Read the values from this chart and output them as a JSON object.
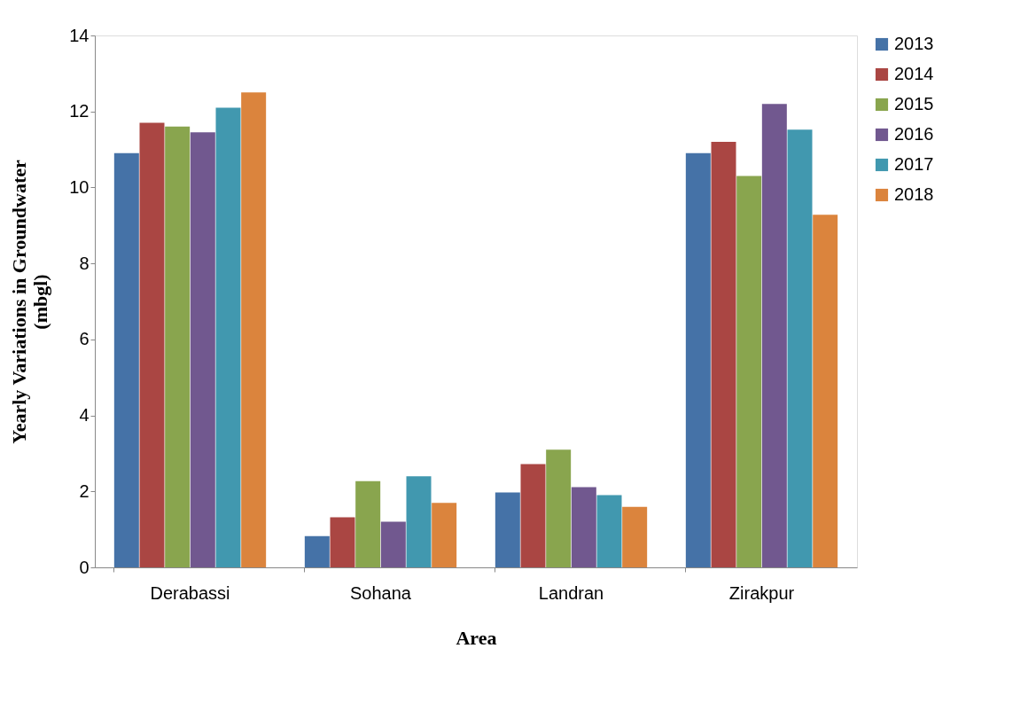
{
  "chart_data": {
    "type": "bar",
    "xlabel": "Area",
    "ylabel": "Yearly Variations in Groundwater (mbgl)",
    "categories": [
      "Derabassi",
      "Sohana",
      "Landran",
      "Zirakpur"
    ],
    "series": [
      {
        "name": "2013",
        "color": "#4572a7",
        "values": [
          10.9,
          0.82,
          1.97,
          10.9
        ]
      },
      {
        "name": "2014",
        "color": "#aa4643",
        "values": [
          11.7,
          1.32,
          2.72,
          11.2
        ]
      },
      {
        "name": "2015",
        "color": "#89a54e",
        "values": [
          11.6,
          2.27,
          3.1,
          10.3
        ]
      },
      {
        "name": "2016",
        "color": "#71588f",
        "values": [
          11.45,
          1.2,
          2.11,
          12.2
        ]
      },
      {
        "name": "2017",
        "color": "#4198af",
        "values": [
          12.1,
          2.4,
          1.9,
          11.52
        ]
      },
      {
        "name": "2018",
        "color": "#db843d",
        "values": [
          12.5,
          1.7,
          1.59,
          9.28
        ]
      }
    ],
    "ylim": [
      0,
      14
    ],
    "yticks": [
      0,
      2,
      4,
      6,
      8,
      10,
      12,
      14
    ],
    "grid": false,
    "legend": "right"
  }
}
